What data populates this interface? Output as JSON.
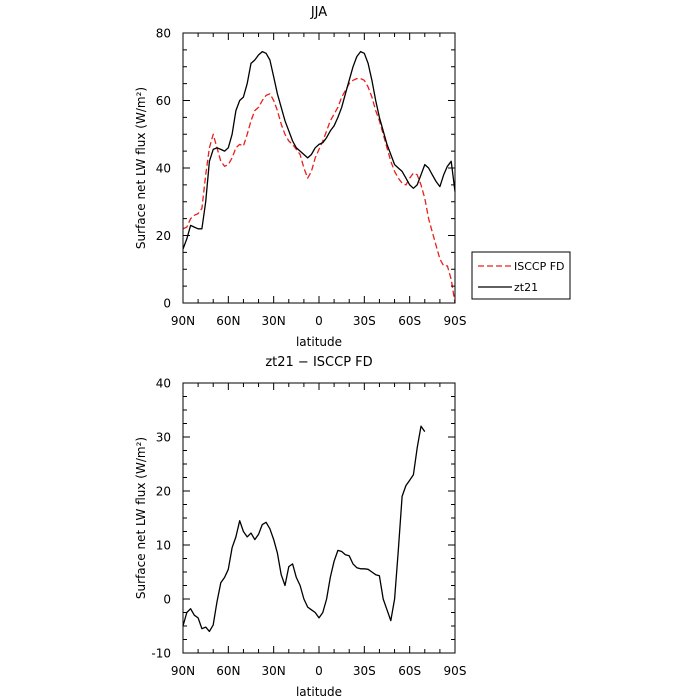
{
  "chart_data": [
    {
      "type": "line",
      "title": "JJA",
      "xlabel": "latitude",
      "ylabel": "Surface net LW flux (W/m²)",
      "x_ticks": [
        {
          "value": 90,
          "label": "90N"
        },
        {
          "value": 60,
          "label": "60N"
        },
        {
          "value": 30,
          "label": "30N"
        },
        {
          "value": 0,
          "label": "0"
        },
        {
          "value": -30,
          "label": "30S"
        },
        {
          "value": -60,
          "label": "60S"
        },
        {
          "value": -90,
          "label": "90S"
        }
      ],
      "xlim": [
        90,
        -90
      ],
      "ylim": [
        0,
        80
      ],
      "y_ticks": [
        0,
        20,
        40,
        60,
        80
      ],
      "legend_placement": "outside-right",
      "series": [
        {
          "name": "ISCCP FD",
          "color": "#e8201a",
          "dash": "dashed",
          "points": [
            [
              90,
              22
            ],
            [
              87.5,
              22.5
            ],
            [
              85,
              25
            ],
            [
              82.5,
              26
            ],
            [
              80,
              26.5
            ],
            [
              77.5,
              28
            ],
            [
              75,
              38
            ],
            [
              72.5,
              46
            ],
            [
              70,
              50
            ],
            [
              67.5,
              46
            ],
            [
              65,
              42
            ],
            [
              62.5,
              40.5
            ],
            [
              60,
              41
            ],
            [
              57.5,
              43
            ],
            [
              55,
              46
            ],
            [
              52.5,
              47
            ],
            [
              50,
              46.5
            ],
            [
              47.5,
              50
            ],
            [
              45,
              54
            ],
            [
              42.5,
              57
            ],
            [
              40,
              58
            ],
            [
              37.5,
              60
            ],
            [
              35,
              61.5
            ],
            [
              32.5,
              62
            ],
            [
              30,
              60
            ],
            [
              27.5,
              57
            ],
            [
              25,
              53
            ],
            [
              22.5,
              50
            ],
            [
              20,
              48
            ],
            [
              17.5,
              47
            ],
            [
              15,
              45.5
            ],
            [
              12.5,
              44
            ],
            [
              10,
              40
            ],
            [
              7.5,
              37
            ],
            [
              5,
              39
            ],
            [
              2.5,
              43
            ],
            [
              0,
              45.5
            ],
            [
              -2.5,
              48
            ],
            [
              -5,
              51
            ],
            [
              -7.5,
              54
            ],
            [
              -10,
              56
            ],
            [
              -12.5,
              58
            ],
            [
              -15,
              61
            ],
            [
              -17.5,
              63
            ],
            [
              -20,
              65
            ],
            [
              -22.5,
              66
            ],
            [
              -25,
              66.5
            ],
            [
              -27.5,
              66.5
            ],
            [
              -30,
              66
            ],
            [
              -32.5,
              64
            ],
            [
              -35,
              61
            ],
            [
              -37.5,
              57
            ],
            [
              -40,
              54
            ],
            [
              -42.5,
              50
            ],
            [
              -45,
              46
            ],
            [
              -47.5,
              42
            ],
            [
              -50,
              39
            ],
            [
              -52.5,
              37
            ],
            [
              -55,
              35.5
            ],
            [
              -57.5,
              35
            ],
            [
              -60,
              37
            ],
            [
              -62.5,
              38.5
            ],
            [
              -65,
              38
            ],
            [
              -67.5,
              35
            ],
            [
              -70,
              31
            ],
            [
              -72.5,
              25
            ],
            [
              -75,
              21
            ],
            [
              -77.5,
              17
            ],
            [
              -80,
              13
            ],
            [
              -82.5,
              11
            ],
            [
              -85,
              11
            ],
            [
              -87.5,
              7
            ],
            [
              -90,
              0
            ]
          ]
        },
        {
          "name": "zt21",
          "color": "#000000",
          "dash": "solid",
          "points": [
            [
              90,
              16
            ],
            [
              87.5,
              19
            ],
            [
              85,
              23
            ],
            [
              82.5,
              22.5
            ],
            [
              80,
              22
            ],
            [
              77.5,
              22
            ],
            [
              75,
              30
            ],
            [
              72.5,
              42
            ],
            [
              70,
              45.5
            ],
            [
              67.5,
              46
            ],
            [
              65,
              45.5
            ],
            [
              62.5,
              45
            ],
            [
              60,
              46
            ],
            [
              57.5,
              50
            ],
            [
              55,
              57
            ],
            [
              52.5,
              60
            ],
            [
              50,
              61
            ],
            [
              47.5,
              65
            ],
            [
              45,
              71
            ],
            [
              42.5,
              72
            ],
            [
              40,
              73.5
            ],
            [
              37.5,
              74.5
            ],
            [
              35,
              74
            ],
            [
              32.5,
              72
            ],
            [
              30,
              67
            ],
            [
              27.5,
              62
            ],
            [
              25,
              58
            ],
            [
              22.5,
              54
            ],
            [
              20,
              51
            ],
            [
              17.5,
              48
            ],
            [
              15,
              46
            ],
            [
              12.5,
              45
            ],
            [
              10,
              44
            ],
            [
              7.5,
              43
            ],
            [
              5,
              44
            ],
            [
              2.5,
              46
            ],
            [
              0,
              47
            ],
            [
              -2.5,
              47.5
            ],
            [
              -5,
              49
            ],
            [
              -7.5,
              51
            ],
            [
              -10,
              52.5
            ],
            [
              -12.5,
              55
            ],
            [
              -15,
              58
            ],
            [
              -17.5,
              62
            ],
            [
              -20,
              66
            ],
            [
              -22.5,
              70
            ],
            [
              -25,
              73
            ],
            [
              -27.5,
              74.5
            ],
            [
              -30,
              74
            ],
            [
              -32.5,
              71
            ],
            [
              -35,
              66
            ],
            [
              -37.5,
              60
            ],
            [
              -40,
              55
            ],
            [
              -42.5,
              51
            ],
            [
              -45,
              47
            ],
            [
              -47.5,
              44
            ],
            [
              -50,
              41
            ],
            [
              -52.5,
              40
            ],
            [
              -55,
              39
            ],
            [
              -57.5,
              37
            ],
            [
              -60,
              35
            ],
            [
              -62.5,
              34
            ],
            [
              -65,
              35
            ],
            [
              -67.5,
              38
            ],
            [
              -70,
              41
            ],
            [
              -72.5,
              40
            ],
            [
              -75,
              38
            ],
            [
              -77.5,
              36
            ],
            [
              -80,
              34.5
            ],
            [
              -82.5,
              38
            ],
            [
              -85,
              40.5
            ],
            [
              -87.5,
              42
            ],
            [
              -90,
              33
            ]
          ]
        }
      ]
    },
    {
      "type": "line",
      "title": "zt21 − ISCCP FD",
      "xlabel": "latitude",
      "ylabel": "Surface net LW flux (W/m²)",
      "x_ticks": [
        {
          "value": 90,
          "label": "90N"
        },
        {
          "value": 60,
          "label": "60N"
        },
        {
          "value": 30,
          "label": "30N"
        },
        {
          "value": 0,
          "label": "0"
        },
        {
          "value": -30,
          "label": "30S"
        },
        {
          "value": -60,
          "label": "60S"
        },
        {
          "value": -90,
          "label": "90S"
        }
      ],
      "xlim": [
        90,
        -90
      ],
      "ylim": [
        -10,
        40
      ],
      "y_ticks": [
        -10,
        0,
        10,
        20,
        30,
        40
      ],
      "series": [
        {
          "color": "#000000",
          "dash": "solid",
          "points": [
            [
              90,
              -5
            ],
            [
              87.5,
              -2.5
            ],
            [
              85,
              -1.8
            ],
            [
              82.5,
              -3
            ],
            [
              80,
              -3.5
            ],
            [
              77.5,
              -5.5
            ],
            [
              75,
              -5.2
            ],
            [
              72.5,
              -6
            ],
            [
              70,
              -4.8
            ],
            [
              67.5,
              -0.5
            ],
            [
              65,
              3
            ],
            [
              62.5,
              4
            ],
            [
              60,
              5.5
            ],
            [
              57.5,
              9.5
            ],
            [
              55,
              11.5
            ],
            [
              52.5,
              14.5
            ],
            [
              50,
              12.5
            ],
            [
              47.5,
              11.5
            ],
            [
              45,
              12.2
            ],
            [
              42.5,
              11
            ],
            [
              40,
              12
            ],
            [
              37.5,
              13.8
            ],
            [
              35,
              14.2
            ],
            [
              32.5,
              13
            ],
            [
              30,
              11
            ],
            [
              27.5,
              8.5
            ],
            [
              25,
              4.5
            ],
            [
              22.5,
              2.5
            ],
            [
              20,
              6
            ],
            [
              17.5,
              6.5
            ],
            [
              15,
              4
            ],
            [
              12.5,
              2.5
            ],
            [
              10,
              0
            ],
            [
              7.5,
              -1.5
            ],
            [
              5,
              -2
            ],
            [
              2.5,
              -2.5
            ],
            [
              0,
              -3.5
            ],
            [
              -2.5,
              -2.5
            ],
            [
              -5,
              0
            ],
            [
              -7.5,
              4
            ],
            [
              -10,
              7
            ],
            [
              -12.5,
              9
            ],
            [
              -15,
              8.8
            ],
            [
              -17.5,
              8.2
            ],
            [
              -20,
              8
            ],
            [
              -22.5,
              6.5
            ],
            [
              -25,
              5.8
            ],
            [
              -27.5,
              5.6
            ],
            [
              -30,
              5.6
            ],
            [
              -32.5,
              5.5
            ],
            [
              -35,
              5
            ],
            [
              -37.5,
              4.5
            ],
            [
              -40,
              4.3
            ],
            [
              -42.5,
              0
            ],
            [
              -45,
              -2
            ],
            [
              -47.5,
              -4
            ],
            [
              -50,
              0
            ],
            [
              -52.5,
              9
            ],
            [
              -55,
              19
            ],
            [
              -57.5,
              21
            ],
            [
              -60,
              22
            ],
            [
              -62.5,
              23
            ],
            [
              -65,
              28
            ],
            [
              -67.5,
              32
            ],
            [
              -70,
              31
            ]
          ]
        }
      ]
    }
  ]
}
